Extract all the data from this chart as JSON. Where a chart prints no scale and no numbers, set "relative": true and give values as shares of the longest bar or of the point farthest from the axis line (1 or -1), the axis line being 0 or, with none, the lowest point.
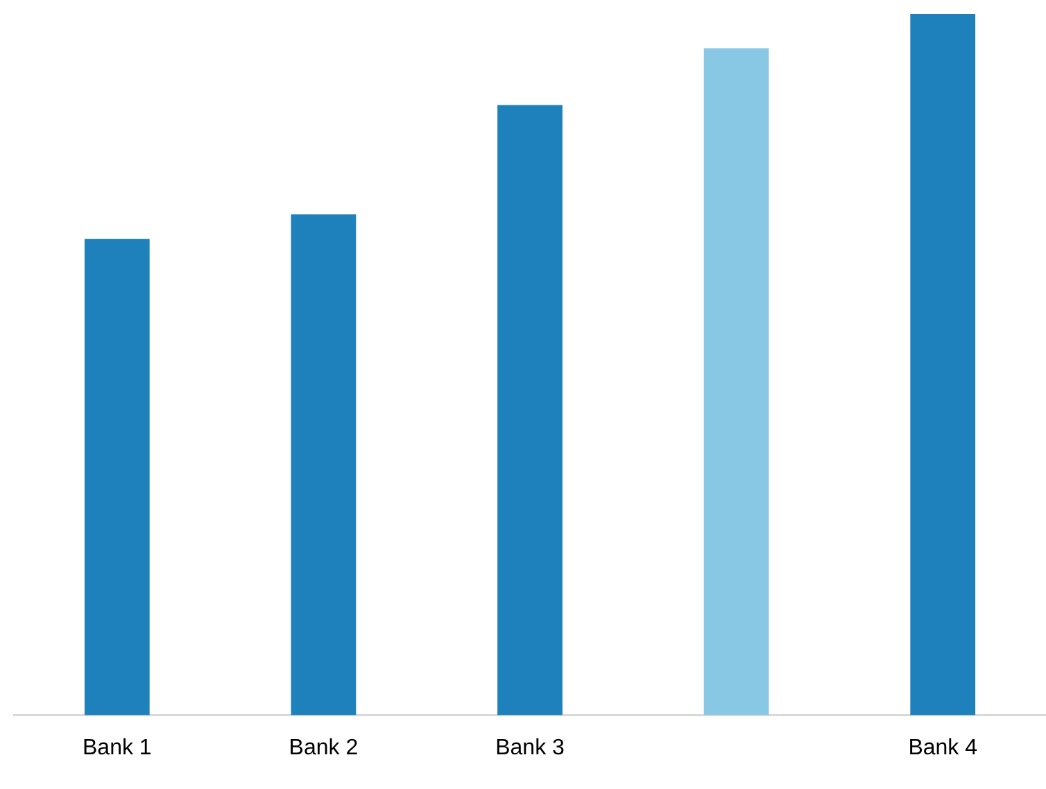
{
  "chart_data": {
    "type": "bar",
    "relative": true,
    "categories": [
      "Bank 1",
      "Bank 2",
      "Bank 3",
      null,
      "Bank 4"
    ],
    "values": [
      0.679,
      0.714,
      0.87,
      0.951,
      1
    ],
    "colors": [
      "#1f81bc",
      "#1f81bc",
      "#1f81bc",
      "#89c8e5",
      "#1f81bc"
    ],
    "grid": false,
    "legend": false
  }
}
